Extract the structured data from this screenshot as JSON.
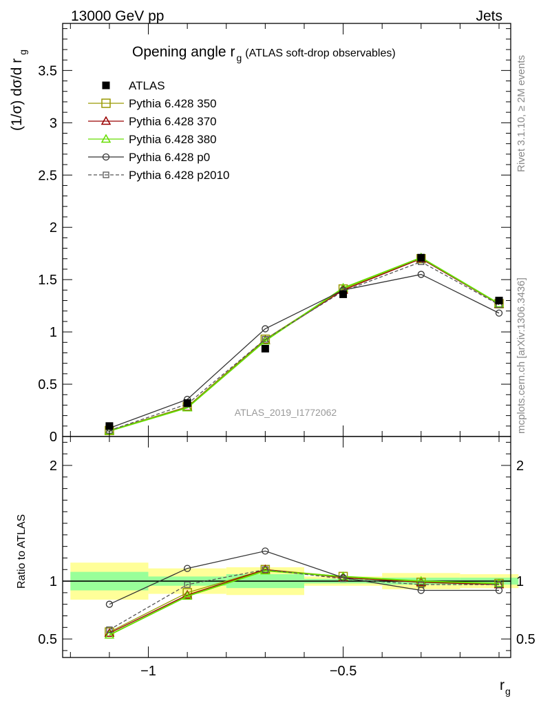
{
  "header": {
    "left": "13000 GeV pp",
    "right": "Jets"
  },
  "side_labels": {
    "rivet": "Rivet 3.1.10, ≥ 2M events",
    "mcplots": "mcplots.cern.ch [arXiv:1306.3436]"
  },
  "watermark": "ATLAS_2019_I1772062",
  "title": {
    "main": "Opening angle r",
    "sub": "g",
    "small": "(ATLAS soft-drop observables)"
  },
  "ylabel_top": {
    "main": "(1/σ) dσ/d r",
    "sub": "g"
  },
  "ylabel_bottom": "Ratio to ATLAS",
  "xlabel": {
    "main": "r",
    "sub": "g"
  },
  "colors": {
    "atlas": "#000000",
    "p350": "#999900",
    "p370": "#990000",
    "p380": "#66dd00",
    "p0": "#333333",
    "p2010": "#555555",
    "band_inner": "#99ff99",
    "band_outer": "#ffff99"
  },
  "chart_data": [
    {
      "type": "line",
      "title": "Opening angle r_g (ATLAS soft-drop observables)",
      "xlabel": "r_g",
      "ylabel": "(1/σ) dσ/d r_g",
      "xlim": [
        -1.22,
        -0.07
      ],
      "ylim": [
        0,
        3.95
      ],
      "yticks": [
        0,
        0.5,
        1,
        1.5,
        2,
        2.5,
        3,
        3.5
      ],
      "ytick_labels": [
        "0",
        "0.5",
        "1",
        "1.5",
        "2",
        "2.5",
        "3",
        "3.5"
      ],
      "x": [
        -1.1,
        -0.9,
        -0.7,
        -0.5,
        -0.3,
        -0.1
      ],
      "bin_edges": [
        -1.2,
        -1.0,
        -0.8,
        -0.6,
        -0.4,
        -0.2,
        -0.05
      ],
      "series": [
        {
          "name": "ATLAS",
          "key": "atlas",
          "style": "data",
          "values": [
            0.1,
            0.32,
            0.84,
            1.36,
            1.71,
            1.3
          ]
        },
        {
          "name": "Pythia 6.428 350",
          "key": "p350",
          "style": "square",
          "values": [
            0.057,
            0.285,
            0.93,
            1.41,
            1.7,
            1.27
          ]
        },
        {
          "name": "Pythia 6.428 370",
          "key": "p370",
          "style": "triangle",
          "values": [
            0.055,
            0.28,
            0.92,
            1.4,
            1.7,
            1.265
          ]
        },
        {
          "name": "Pythia 6.428 380",
          "key": "p380",
          "style": "triangle",
          "values": [
            0.053,
            0.275,
            0.915,
            1.42,
            1.71,
            1.27
          ]
        },
        {
          "name": "Pythia 6.428 p0",
          "key": "p0",
          "style": "circle",
          "values": [
            0.08,
            0.355,
            1.03,
            1.4,
            1.55,
            1.18
          ]
        },
        {
          "name": "Pythia 6.428 p2010",
          "key": "p2010",
          "style": "dashsquare",
          "values": [
            0.058,
            0.31,
            0.93,
            1.39,
            1.67,
            1.26
          ]
        }
      ]
    },
    {
      "type": "line",
      "xlabel": "r_g",
      "ylabel": "Ratio to ATLAS",
      "xlim": [
        -1.22,
        -0.07
      ],
      "ylim": [
        0.34,
        2.25
      ],
      "yticks": [
        0.5,
        1,
        2
      ],
      "ytick_labels": [
        "0.5",
        "1",
        "2"
      ],
      "xticks": [
        -1,
        -0.5
      ],
      "xtick_labels": [
        "−1",
        "−0.5"
      ],
      "x": [
        -1.1,
        -0.9,
        -0.7,
        -0.5,
        -0.3,
        -0.1
      ],
      "band_inner": [
        0.08,
        0.04,
        0.06,
        0.02,
        0.03,
        0.03
      ],
      "band_outer": [
        0.16,
        0.11,
        0.12,
        0.04,
        0.07,
        0.06
      ],
      "series": [
        {
          "name": "Pythia 6.428 350",
          "key": "p350",
          "style": "square",
          "values": [
            0.56,
            0.9,
            1.1,
            1.04,
            0.99,
            0.98
          ]
        },
        {
          "name": "Pythia 6.428 370",
          "key": "p370",
          "style": "triangle",
          "values": [
            0.55,
            0.88,
            1.1,
            1.03,
            0.99,
            0.97
          ]
        },
        {
          "name": "Pythia 6.428 380",
          "key": "p380",
          "style": "triangle",
          "values": [
            0.535,
            0.87,
            1.09,
            1.04,
            1.0,
            0.98
          ]
        },
        {
          "name": "Pythia 6.428 p0",
          "key": "p0",
          "style": "circle",
          "values": [
            0.8,
            1.11,
            1.26,
            1.03,
            0.92,
            0.92
          ]
        },
        {
          "name": "Pythia 6.428 p2010",
          "key": "p2010",
          "style": "dashsquare",
          "values": [
            0.58,
            0.97,
            1.1,
            1.02,
            0.97,
            0.97
          ]
        }
      ]
    }
  ]
}
